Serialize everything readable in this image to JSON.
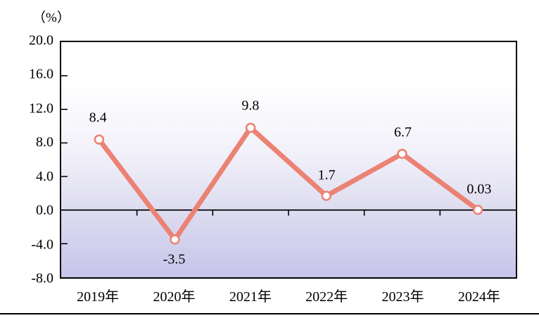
{
  "title": "（%）",
  "colors": {
    "line": "#EC8273",
    "marker_fill": "#FFFFFF",
    "axis": "#000000",
    "plot_bg_top": "#FFFFFF",
    "plot_bg_bottom": "#C6C4EA"
  },
  "chart_data": {
    "type": "line",
    "title": "（%）",
    "xlabel": "",
    "ylabel": "（%）",
    "categories": [
      "2019年",
      "2020年",
      "2021年",
      "2022年",
      "2023年",
      "2024年"
    ],
    "values": [
      8.4,
      -3.5,
      9.8,
      1.7,
      6.7,
      0.03
    ],
    "point_labels": [
      "8.4",
      "-3.5",
      "9.8",
      "1.7",
      "6.7",
      "0.03"
    ],
    "point_label_positions": [
      "above",
      "below",
      "above",
      "above",
      "above",
      "above"
    ],
    "ylim": [
      -8.0,
      20.0
    ],
    "ytick_step": 4.0,
    "yticks": [
      "20.0",
      "16.0",
      "12.0",
      "8.0",
      "4.0",
      "0.0",
      "-4.0",
      "-8.0"
    ],
    "ytick_values": [
      20.0,
      16.0,
      12.0,
      8.0,
      4.0,
      0.0,
      -4.0,
      -8.0
    ],
    "zero_baseline": 0.0,
    "grid": false,
    "legend": null
  }
}
